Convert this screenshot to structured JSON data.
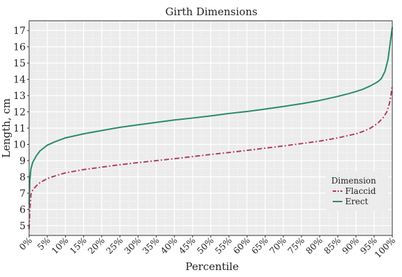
{
  "chart_data": {
    "type": "line",
    "title": "Girth Dimensions",
    "xlabel": "Percentile",
    "ylabel": "Length, cm",
    "xlim": [
      0,
      100
    ],
    "ylim": [
      4.4,
      17.6
    ],
    "yticks": [
      5,
      6,
      7,
      8,
      9,
      10,
      11,
      12,
      13,
      14,
      15,
      16,
      17
    ],
    "xtick_labels": [
      "0%",
      "5%",
      "10%",
      "15%",
      "20%",
      "25%",
      "30%",
      "35%",
      "40%",
      "45%",
      "50%",
      "55%",
      "60%",
      "65%",
      "70%",
      "75%",
      "80%",
      "85%",
      "90%",
      "95%",
      "100%"
    ],
    "grid": true,
    "legend": {
      "title": "Dimension",
      "position": "lower-right"
    },
    "series": [
      {
        "name": "Flaccid",
        "color": "#b23a6a",
        "dash": "dashdot",
        "points": [
          [
            0,
            4.8
          ],
          [
            0.2,
            6.0
          ],
          [
            0.5,
            6.9
          ],
          [
            1,
            7.2
          ],
          [
            2,
            7.45
          ],
          [
            3,
            7.65
          ],
          [
            5,
            7.9
          ],
          [
            7,
            8.05
          ],
          [
            10,
            8.25
          ],
          [
            15,
            8.45
          ],
          [
            20,
            8.6
          ],
          [
            25,
            8.75
          ],
          [
            30,
            8.88
          ],
          [
            35,
            9.0
          ],
          [
            40,
            9.12
          ],
          [
            45,
            9.25
          ],
          [
            50,
            9.38
          ],
          [
            55,
            9.5
          ],
          [
            60,
            9.63
          ],
          [
            65,
            9.77
          ],
          [
            70,
            9.9
          ],
          [
            75,
            10.05
          ],
          [
            80,
            10.2
          ],
          [
            85,
            10.4
          ],
          [
            88,
            10.55
          ],
          [
            90,
            10.65
          ],
          [
            92,
            10.8
          ],
          [
            94,
            11.0
          ],
          [
            96,
            11.3
          ],
          [
            97.5,
            11.65
          ],
          [
            98.5,
            12.0
          ],
          [
            99.2,
            12.5
          ],
          [
            99.6,
            13.0
          ],
          [
            100,
            13.6
          ]
        ]
      },
      {
        "name": "Erect",
        "color": "#2a8a6a",
        "dash": "solid",
        "points": [
          [
            0,
            6.3
          ],
          [
            0.2,
            7.8
          ],
          [
            0.5,
            8.5
          ],
          [
            1,
            8.9
          ],
          [
            2,
            9.3
          ],
          [
            3,
            9.6
          ],
          [
            5,
            9.95
          ],
          [
            7,
            10.15
          ],
          [
            10,
            10.4
          ],
          [
            15,
            10.65
          ],
          [
            20,
            10.85
          ],
          [
            25,
            11.05
          ],
          [
            30,
            11.2
          ],
          [
            35,
            11.35
          ],
          [
            40,
            11.5
          ],
          [
            45,
            11.62
          ],
          [
            50,
            11.75
          ],
          [
            55,
            11.9
          ],
          [
            60,
            12.02
          ],
          [
            65,
            12.17
          ],
          [
            70,
            12.33
          ],
          [
            75,
            12.5
          ],
          [
            80,
            12.7
          ],
          [
            85,
            12.95
          ],
          [
            88,
            13.12
          ],
          [
            90,
            13.25
          ],
          [
            92,
            13.4
          ],
          [
            94,
            13.6
          ],
          [
            96,
            13.85
          ],
          [
            97,
            14.05
          ],
          [
            98,
            14.5
          ],
          [
            98.8,
            15.2
          ],
          [
            99.4,
            16.2
          ],
          [
            100,
            17.2
          ]
        ]
      }
    ]
  }
}
